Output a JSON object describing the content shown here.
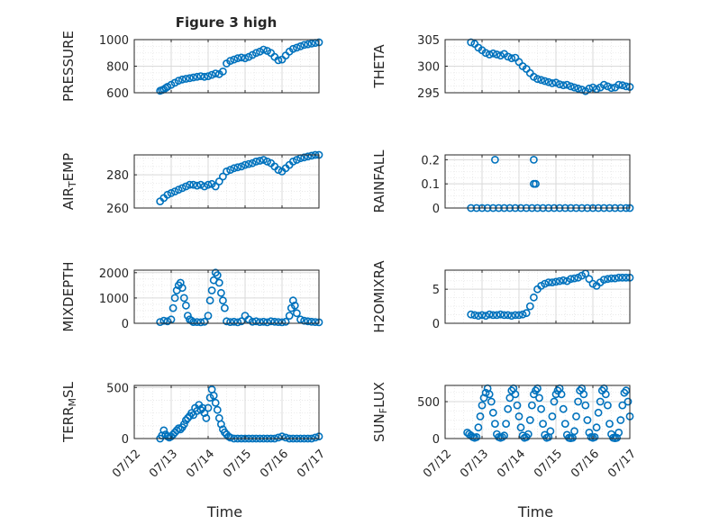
{
  "figure": {
    "title": "Figure 3 high"
  },
  "colors": {
    "marker": "#0072bd",
    "axis": "#262626",
    "grid": "#d9d9d9",
    "background": "#ffffff"
  },
  "chart_data": [
    {
      "type": "scatter",
      "name": "pressure",
      "title": "Figure 3 high",
      "ylabel": "PRESSURE",
      "xlabel": "",
      "xlim": [
        0,
        5
      ],
      "ylim": [
        600,
        1000
      ],
      "yticks": [
        600,
        800,
        1000
      ],
      "xticks": [],
      "grid": true,
      "legend": "none",
      "series": [
        {
          "x": [
            0.7,
            0.75,
            0.8,
            0.85,
            0.9,
            1.0,
            1.1,
            1.2,
            1.3,
            1.4,
            1.5,
            1.6,
            1.7,
            1.8,
            1.9,
            2.0,
            2.1,
            2.2,
            2.3,
            2.4,
            2.5,
            2.6,
            2.7,
            2.8,
            2.9,
            3.0,
            3.1,
            3.2,
            3.3,
            3.4,
            3.5,
            3.6,
            3.7,
            3.8,
            3.9,
            4.0,
            4.1,
            4.2,
            4.3,
            4.4,
            4.5,
            4.6,
            4.7,
            4.8,
            4.9,
            5.0
          ],
          "y": [
            615,
            620,
            625,
            635,
            645,
            660,
            675,
            690,
            700,
            705,
            710,
            715,
            720,
            725,
            720,
            725,
            735,
            745,
            740,
            760,
            820,
            840,
            850,
            860,
            865,
            860,
            870,
            885,
            900,
            910,
            925,
            915,
            900,
            870,
            845,
            850,
            880,
            910,
            930,
            940,
            950,
            960,
            965,
            970,
            975,
            980
          ]
        }
      ]
    },
    {
      "type": "scatter",
      "name": "theta",
      "ylabel": "THETA",
      "xlabel": "",
      "xlim": [
        0,
        5
      ],
      "ylim": [
        295,
        305
      ],
      "yticks": [
        295,
        300,
        305
      ],
      "xticks": [],
      "grid": true,
      "legend": "none",
      "series": [
        {
          "x": [
            0.7,
            0.8,
            0.9,
            1.0,
            1.1,
            1.2,
            1.3,
            1.4,
            1.5,
            1.6,
            1.7,
            1.8,
            1.9,
            2.0,
            2.1,
            2.2,
            2.3,
            2.4,
            2.5,
            2.6,
            2.7,
            2.8,
            2.9,
            3.0,
            3.1,
            3.2,
            3.3,
            3.4,
            3.5,
            3.6,
            3.7,
            3.8,
            3.9,
            4.0,
            4.1,
            4.2,
            4.3,
            4.4,
            4.5,
            4.6,
            4.7,
            4.8,
            4.9,
            5.0
          ],
          "y": [
            304.5,
            304.2,
            303.5,
            303.0,
            302.5,
            302.2,
            302.4,
            302.2,
            302.0,
            302.3,
            301.8,
            301.5,
            301.6,
            300.8,
            300.0,
            299.5,
            298.7,
            298.0,
            297.6,
            297.4,
            297.2,
            297.0,
            296.8,
            296.9,
            296.6,
            296.4,
            296.5,
            296.2,
            296.0,
            295.8,
            295.6,
            295.3,
            295.8,
            296.0,
            295.7,
            296.0,
            296.5,
            296.2,
            295.9,
            296.0,
            296.5,
            296.4,
            296.2,
            296.1
          ]
        }
      ]
    },
    {
      "type": "scatter",
      "name": "air_temp",
      "ylabel": "AIR_TEMP",
      "xlabel": "",
      "xlim": [
        0,
        5
      ],
      "ylim": [
        260,
        292
      ],
      "yticks": [
        260,
        280
      ],
      "xticks": [],
      "grid": true,
      "legend": "none",
      "series": [
        {
          "x": [
            0.7,
            0.8,
            0.9,
            1.0,
            1.1,
            1.2,
            1.3,
            1.4,
            1.5,
            1.6,
            1.7,
            1.8,
            1.9,
            2.0,
            2.1,
            2.2,
            2.3,
            2.4,
            2.5,
            2.6,
            2.7,
            2.8,
            2.9,
            3.0,
            3.1,
            3.2,
            3.3,
            3.4,
            3.5,
            3.6,
            3.7,
            3.8,
            3.9,
            4.0,
            4.1,
            4.2,
            4.3,
            4.4,
            4.5,
            4.6,
            4.7,
            4.8,
            4.9,
            5.0
          ],
          "y": [
            264,
            266,
            268,
            269,
            270,
            271,
            272,
            273,
            274,
            274,
            273.5,
            274,
            273,
            274,
            274.5,
            273,
            276,
            279,
            282,
            283,
            284,
            284.5,
            285,
            286,
            286.5,
            287,
            288,
            288.5,
            289,
            288,
            287,
            285,
            283,
            282,
            284,
            286,
            288,
            289,
            290,
            290.5,
            291,
            291.5,
            292,
            292
          ]
        }
      ]
    },
    {
      "type": "scatter",
      "name": "rainfall",
      "ylabel": "RAINFALL",
      "xlabel": "",
      "xlim": [
        0,
        5
      ],
      "ylim": [
        0,
        0.22
      ],
      "yticks": [
        0,
        0.1,
        0.2
      ],
      "xticks": [],
      "grid": true,
      "legend": "none",
      "series": [
        {
          "x": [
            0.7,
            0.85,
            1.0,
            1.15,
            1.3,
            1.45,
            1.6,
            1.75,
            1.9,
            2.05,
            2.2,
            2.35,
            2.5,
            2.65,
            2.8,
            2.95,
            3.1,
            3.25,
            3.4,
            3.55,
            3.7,
            3.85,
            4.0,
            4.15,
            4.3,
            4.45,
            4.6,
            4.75,
            4.9,
            5.0,
            1.35,
            2.4,
            2.4,
            2.45
          ],
          "y": [
            0,
            0,
            0,
            0,
            0,
            0,
            0,
            0,
            0,
            0,
            0,
            0,
            0,
            0,
            0,
            0,
            0,
            0,
            0,
            0,
            0,
            0,
            0,
            0,
            0,
            0,
            0,
            0,
            0,
            0,
            0.2,
            0.2,
            0.1,
            0.1
          ]
        }
      ]
    },
    {
      "type": "scatter",
      "name": "mixdepth",
      "ylabel": "MIXDEPTH",
      "xlabel": "",
      "xlim": [
        0,
        5
      ],
      "ylim": [
        0,
        2100
      ],
      "yticks": [
        0,
        1000,
        2000
      ],
      "xticks": [],
      "grid": true,
      "legend": "none",
      "series": [
        {
          "x": [
            0.7,
            0.8,
            0.9,
            1.0,
            1.05,
            1.1,
            1.15,
            1.2,
            1.25,
            1.3,
            1.35,
            1.4,
            1.45,
            1.5,
            1.55,
            1.6,
            1.7,
            1.8,
            1.9,
            2.0,
            2.05,
            2.1,
            2.15,
            2.2,
            2.25,
            2.3,
            2.35,
            2.4,
            2.45,
            2.5,
            2.6,
            2.7,
            2.8,
            2.9,
            3.0,
            3.1,
            3.2,
            3.3,
            3.4,
            3.5,
            3.6,
            3.7,
            3.8,
            3.9,
            4.0,
            4.1,
            4.2,
            4.25,
            4.3,
            4.35,
            4.4,
            4.5,
            4.6,
            4.7,
            4.8,
            4.9,
            5.0
          ],
          "y": [
            50,
            100,
            80,
            150,
            600,
            1000,
            1300,
            1500,
            1600,
            1400,
            1000,
            700,
            300,
            150,
            100,
            50,
            50,
            40,
            60,
            300,
            900,
            1300,
            1700,
            2000,
            1900,
            1600,
            1200,
            900,
            600,
            80,
            50,
            60,
            40,
            80,
            300,
            150,
            60,
            80,
            50,
            60,
            40,
            80,
            60,
            50,
            40,
            60,
            300,
            600,
            900,
            700,
            400,
            150,
            100,
            80,
            60,
            50,
            40
          ]
        }
      ]
    },
    {
      "type": "scatter",
      "name": "h2omixra",
      "ylabel": "H2OMIXRA",
      "xlabel": "",
      "xlim": [
        0,
        5
      ],
      "ylim": [
        0,
        7.8
      ],
      "yticks": [
        0,
        5
      ],
      "xticks": [],
      "grid": true,
      "legend": "none",
      "series": [
        {
          "x": [
            0.7,
            0.8,
            0.9,
            1.0,
            1.1,
            1.2,
            1.3,
            1.4,
            1.5,
            1.6,
            1.7,
            1.8,
            1.9,
            2.0,
            2.1,
            2.2,
            2.3,
            2.4,
            2.5,
            2.6,
            2.7,
            2.8,
            2.9,
            3.0,
            3.1,
            3.2,
            3.3,
            3.4,
            3.5,
            3.6,
            3.7,
            3.8,
            3.9,
            4.0,
            4.1,
            4.2,
            4.3,
            4.4,
            4.5,
            4.6,
            4.7,
            4.8,
            4.9,
            5.0
          ],
          "y": [
            1.3,
            1.2,
            1.1,
            1.2,
            1.1,
            1.3,
            1.2,
            1.2,
            1.3,
            1.2,
            1.2,
            1.1,
            1.2,
            1.2,
            1.3,
            1.5,
            2.5,
            3.8,
            5.0,
            5.5,
            5.8,
            6.0,
            6.0,
            6.1,
            6.2,
            6.3,
            6.2,
            6.5,
            6.6,
            6.7,
            7.0,
            7.3,
            6.5,
            5.8,
            5.5,
            6.0,
            6.4,
            6.5,
            6.6,
            6.6,
            6.7,
            6.7,
            6.7,
            6.7
          ]
        }
      ]
    },
    {
      "type": "scatter",
      "name": "terr_msl",
      "ylabel": "TERR_MSL",
      "xlabel": "Time",
      "xlim": [
        0,
        5
      ],
      "ylim": [
        0,
        520
      ],
      "yticks": [
        0,
        500
      ],
      "xticks": [
        "07/12",
        "07/13",
        "07/14",
        "07/15",
        "07/16",
        "07/17"
      ],
      "grid": true,
      "legend": "none",
      "series": [
        {
          "x": [
            0.7,
            0.75,
            0.8,
            0.85,
            0.9,
            0.95,
            1.0,
            1.05,
            1.1,
            1.15,
            1.2,
            1.25,
            1.3,
            1.35,
            1.4,
            1.45,
            1.5,
            1.55,
            1.6,
            1.65,
            1.7,
            1.75,
            1.8,
            1.85,
            1.9,
            1.95,
            2.0,
            2.05,
            2.1,
            2.15,
            2.2,
            2.25,
            2.3,
            2.35,
            2.4,
            2.45,
            2.5,
            2.55,
            2.6,
            2.7,
            2.8,
            2.9,
            3.0,
            3.1,
            3.2,
            3.3,
            3.4,
            3.5,
            3.6,
            3.7,
            3.8,
            3.9,
            4.0,
            4.1,
            4.2,
            4.3,
            4.4,
            4.5,
            4.6,
            4.7,
            4.8,
            4.9,
            5.0
          ],
          "y": [
            0,
            30,
            80,
            40,
            20,
            10,
            20,
            40,
            60,
            80,
            100,
            90,
            110,
            140,
            180,
            200,
            220,
            250,
            230,
            300,
            270,
            330,
            280,
            300,
            250,
            200,
            300,
            400,
            480,
            420,
            350,
            280,
            200,
            140,
            90,
            60,
            40,
            20,
            10,
            0,
            0,
            0,
            0,
            0,
            0,
            0,
            0,
            0,
            0,
            0,
            0,
            10,
            20,
            10,
            0,
            0,
            0,
            0,
            0,
            0,
            0,
            10,
            20
          ]
        }
      ]
    },
    {
      "type": "scatter",
      "name": "sun_flux",
      "ylabel": "SUN_FLUX",
      "xlabel": "Time",
      "xlim": [
        0,
        5
      ],
      "ylim": [
        0,
        720
      ],
      "yticks": [
        0,
        500
      ],
      "xticks": [
        "07/12",
        "07/13",
        "07/14",
        "07/15",
        "07/16",
        "07/17"
      ],
      "grid": true,
      "legend": "none",
      "series": [
        {
          "x": [
            0.6,
            0.65,
            0.7,
            0.75,
            0.8,
            0.85,
            0.9,
            0.95,
            1.0,
            1.05,
            1.1,
            1.15,
            1.2,
            1.25,
            1.3,
            1.35,
            1.4,
            1.45,
            1.5,
            1.55,
            1.6,
            1.65,
            1.7,
            1.75,
            1.8,
            1.85,
            1.9,
            1.95,
            2.0,
            2.05,
            2.1,
            2.15,
            2.2,
            2.25,
            2.3,
            2.35,
            2.4,
            2.45,
            2.5,
            2.55,
            2.6,
            2.65,
            2.7,
            2.75,
            2.8,
            2.85,
            2.9,
            2.95,
            3.0,
            3.05,
            3.1,
            3.15,
            3.2,
            3.25,
            3.3,
            3.35,
            3.4,
            3.45,
            3.5,
            3.55,
            3.6,
            3.65,
            3.7,
            3.75,
            3.8,
            3.85,
            3.9,
            3.95,
            4.0,
            4.05,
            4.1,
            4.15,
            4.2,
            4.25,
            4.3,
            4.35,
            4.4,
            4.45,
            4.5,
            4.55,
            4.6,
            4.65,
            4.7,
            4.75,
            4.8,
            4.85,
            4.9,
            4.95,
            5.0
          ],
          "y": [
            80,
            60,
            40,
            20,
            10,
            20,
            150,
            300,
            450,
            550,
            620,
            680,
            600,
            500,
            350,
            200,
            60,
            20,
            10,
            20,
            40,
            200,
            400,
            550,
            650,
            680,
            600,
            450,
            300,
            150,
            40,
            10,
            20,
            60,
            250,
            450,
            600,
            650,
            680,
            550,
            400,
            200,
            50,
            10,
            20,
            100,
            300,
            500,
            600,
            650,
            680,
            600,
            400,
            200,
            50,
            10,
            5,
            10,
            100,
            300,
            500,
            650,
            680,
            600,
            450,
            250,
            80,
            20,
            10,
            20,
            150,
            350,
            500,
            650,
            680,
            600,
            450,
            200,
            60,
            10,
            5,
            10,
            80,
            250,
            450,
            620,
            650,
            500,
            300
          ]
        }
      ]
    }
  ]
}
